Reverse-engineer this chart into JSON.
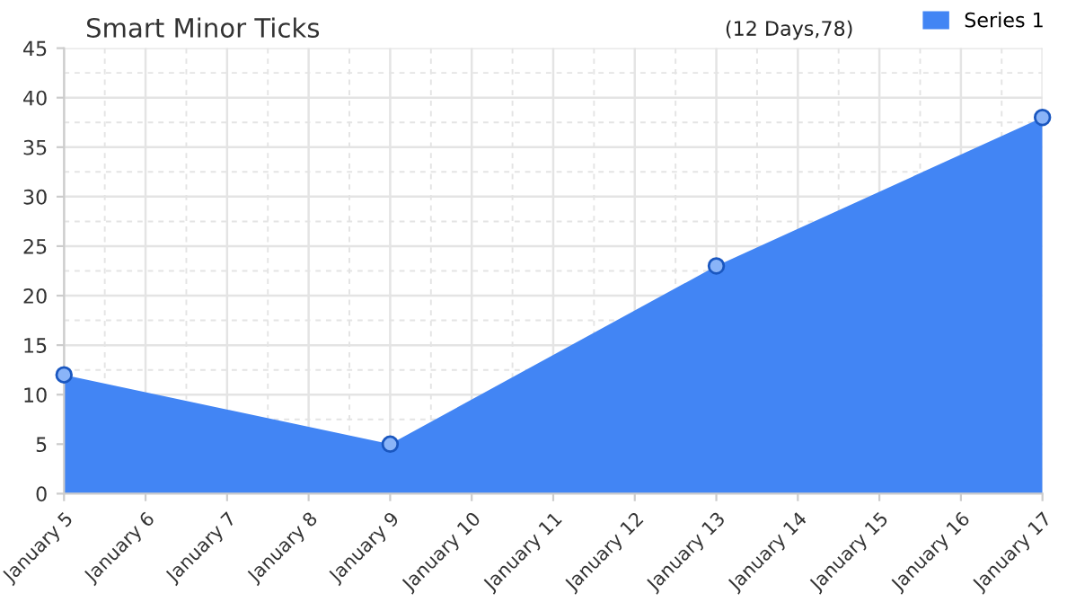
{
  "chart_data": {
    "type": "area",
    "title": "Smart Minor Ticks",
    "annotations": [
      "(12 Days,78)"
    ],
    "x": [
      "--01-05",
      "--01-09",
      "--01-13",
      "--01-17"
    ],
    "series": [
      {
        "name": "Series 1",
        "color": "#4285f4",
        "values": [
          12,
          5,
          23,
          38
        ]
      }
    ],
    "xlim": [
      "--01-05",
      "--01-17"
    ],
    "xticks": [
      {
        "value": "--01-05",
        "label": "January 5"
      },
      {
        "value": "--01-06",
        "label": "January 6"
      },
      {
        "value": "--01-07",
        "label": "January 7"
      },
      {
        "value": "--01-08",
        "label": "January 8"
      },
      {
        "value": "--01-09",
        "label": "January 9"
      },
      {
        "value": "--01-10",
        "label": "January 10"
      },
      {
        "value": "--01-11",
        "label": "January 11"
      },
      {
        "value": "--01-12",
        "label": "January 12"
      },
      {
        "value": "--01-13",
        "label": "January 13"
      },
      {
        "value": "--01-14",
        "label": "January 14"
      },
      {
        "value": "--01-15",
        "label": "January 15"
      },
      {
        "value": "--01-16",
        "label": "January 16"
      },
      {
        "value": "--01-17",
        "label": "January 17"
      }
    ],
    "ylim": [
      0,
      45
    ],
    "yticks": [
      0,
      5,
      10,
      15,
      20,
      25,
      30,
      35,
      40,
      45
    ],
    "grid": true,
    "legend": "top right",
    "marker": "circle"
  }
}
